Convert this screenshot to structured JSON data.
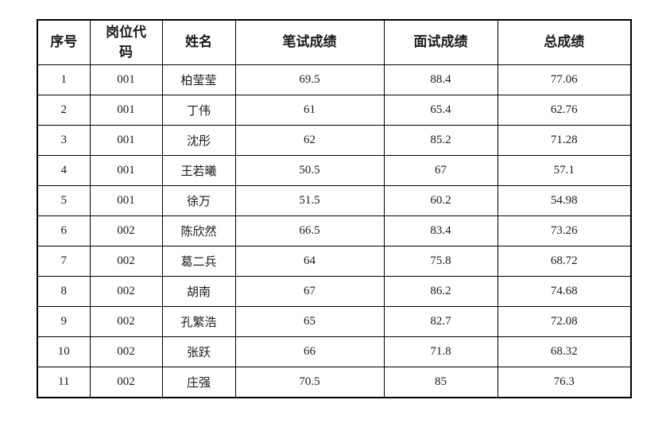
{
  "table": {
    "title": "score-results-table",
    "columns": [
      {
        "key": "index",
        "label": "序号"
      },
      {
        "key": "job_code",
        "label": "岗位代码"
      },
      {
        "key": "name",
        "label": "姓名"
      },
      {
        "key": "written_score",
        "label": "笔试成绩"
      },
      {
        "key": "interview_score",
        "label": "面试成绩"
      },
      {
        "key": "total_score",
        "label": "总成绩"
      }
    ],
    "rows": [
      [
        "1",
        "001",
        "柏莹莹",
        "69.5",
        "88.4",
        "77.06"
      ],
      [
        "2",
        "001",
        "丁伟",
        "61",
        "65.4",
        "62.76"
      ],
      [
        "3",
        "001",
        "沈彤",
        "62",
        "85.2",
        "71.28"
      ],
      [
        "4",
        "001",
        "王若曦",
        "50.5",
        "67",
        "57.1"
      ],
      [
        "5",
        "001",
        "徐万",
        "51.5",
        "60.2",
        "54.98"
      ],
      [
        "6",
        "002",
        "陈欣然",
        "66.5",
        "83.4",
        "73.26"
      ],
      [
        "7",
        "002",
        "葛二兵",
        "64",
        "75.8",
        "68.72"
      ],
      [
        "8",
        "002",
        "胡南",
        "67",
        "86.2",
        "74.68"
      ],
      [
        "9",
        "002",
        "孔繁浩",
        "65",
        "82.7",
        "72.08"
      ],
      [
        "10",
        "002",
        "张跃",
        "66",
        "71.8",
        "68.32"
      ],
      [
        "11",
        "002",
        "庄强",
        "70.5",
        "85",
        "76.3"
      ]
    ],
    "colors": {
      "border": "#000000",
      "text": "#1a1a1a",
      "background": "#ffffff"
    }
  }
}
